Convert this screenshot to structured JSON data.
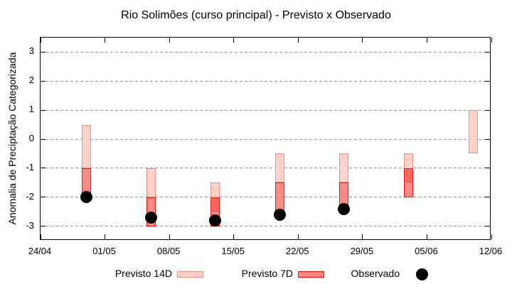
{
  "title": "Rio Solimões (curso principal) - Previsto x Observado",
  "y_axis": {
    "label": "Anomalia de Preciptação Categorizada",
    "tick_labels": [
      "3",
      "2",
      "1",
      "0",
      "-1",
      "-2",
      "-3"
    ]
  },
  "x_axis": {
    "tick_labels": [
      "24/04",
      "01/05",
      "08/05",
      "15/05",
      "22/05",
      "29/05",
      "05/06",
      "12/06"
    ]
  },
  "legend": {
    "items": [
      {
        "label": "Previsto 14D",
        "swatch": "light-red-range-box-icon"
      },
      {
        "label": "Previsto 7D",
        "swatch": "red-range-box-icon"
      },
      {
        "label": "Observado",
        "swatch": "black-dot-icon"
      }
    ]
  },
  "colors": {
    "forecast14_fill": "#fcd2ca",
    "forecast14_border": "#f0907e",
    "forecast7_fill": "#fa8b84",
    "forecast7_border": "#f2140f",
    "overlap_fill": "#f76660",
    "overlap_line": "#e2544c",
    "observed": "#000000",
    "grid": "#979797",
    "axis": "#000000"
  },
  "chart_data": {
    "type": "bar",
    "subtype": "range-bars-with-scatter",
    "title": "Rio Solimões (curso principal) - Previsto x Observado",
    "xlabel": "",
    "ylabel": "Anomalia de Preciptação Categorizada",
    "ylim": [
      -3.5,
      3.5
    ],
    "grid": "horizontal-dashed",
    "legend_position": "below-plot",
    "y_ticks": [
      3,
      2,
      1,
      0,
      -1,
      -2,
      -3
    ],
    "x_tick_labels": [
      "24/04",
      "01/05",
      "08/05",
      "15/05",
      "22/05",
      "29/05",
      "05/06",
      "12/06"
    ],
    "x_tick_days": [
      0,
      7,
      14,
      21,
      28,
      35,
      42,
      49
    ],
    "x_range_days": 49,
    "categories": [
      "29/04",
      "06/05",
      "13/05",
      "20/05",
      "27/05",
      "03/06",
      "10/06"
    ],
    "category_days": [
      5,
      12,
      19,
      26,
      33,
      40,
      47
    ],
    "series": [
      {
        "name": "Previsto 14D",
        "type": "range",
        "ranges": [
          [
            0.5,
            -1.0
          ],
          [
            -1.0,
            -2.0
          ],
          [
            -1.5,
            -2.5
          ],
          [
            -0.5,
            -1.5
          ],
          [
            -0.5,
            -1.5
          ],
          [
            -0.5,
            -1.5
          ],
          [
            1.0,
            -0.5
          ]
        ]
      },
      {
        "name": "Previsto 7D",
        "type": "range",
        "ranges": [
          [
            -1.0,
            -2.0
          ],
          [
            -2.0,
            -3.0
          ],
          [
            -2.0,
            -3.0
          ],
          [
            -1.5,
            -2.5
          ],
          [
            -1.5,
            -2.5
          ],
          [
            -1.0,
            -2.0
          ],
          null
        ]
      },
      {
        "name": "Observado",
        "type": "scatter",
        "values": [
          -2.0,
          -2.7,
          -2.8,
          -2.6,
          -2.4,
          null,
          null
        ]
      }
    ]
  }
}
